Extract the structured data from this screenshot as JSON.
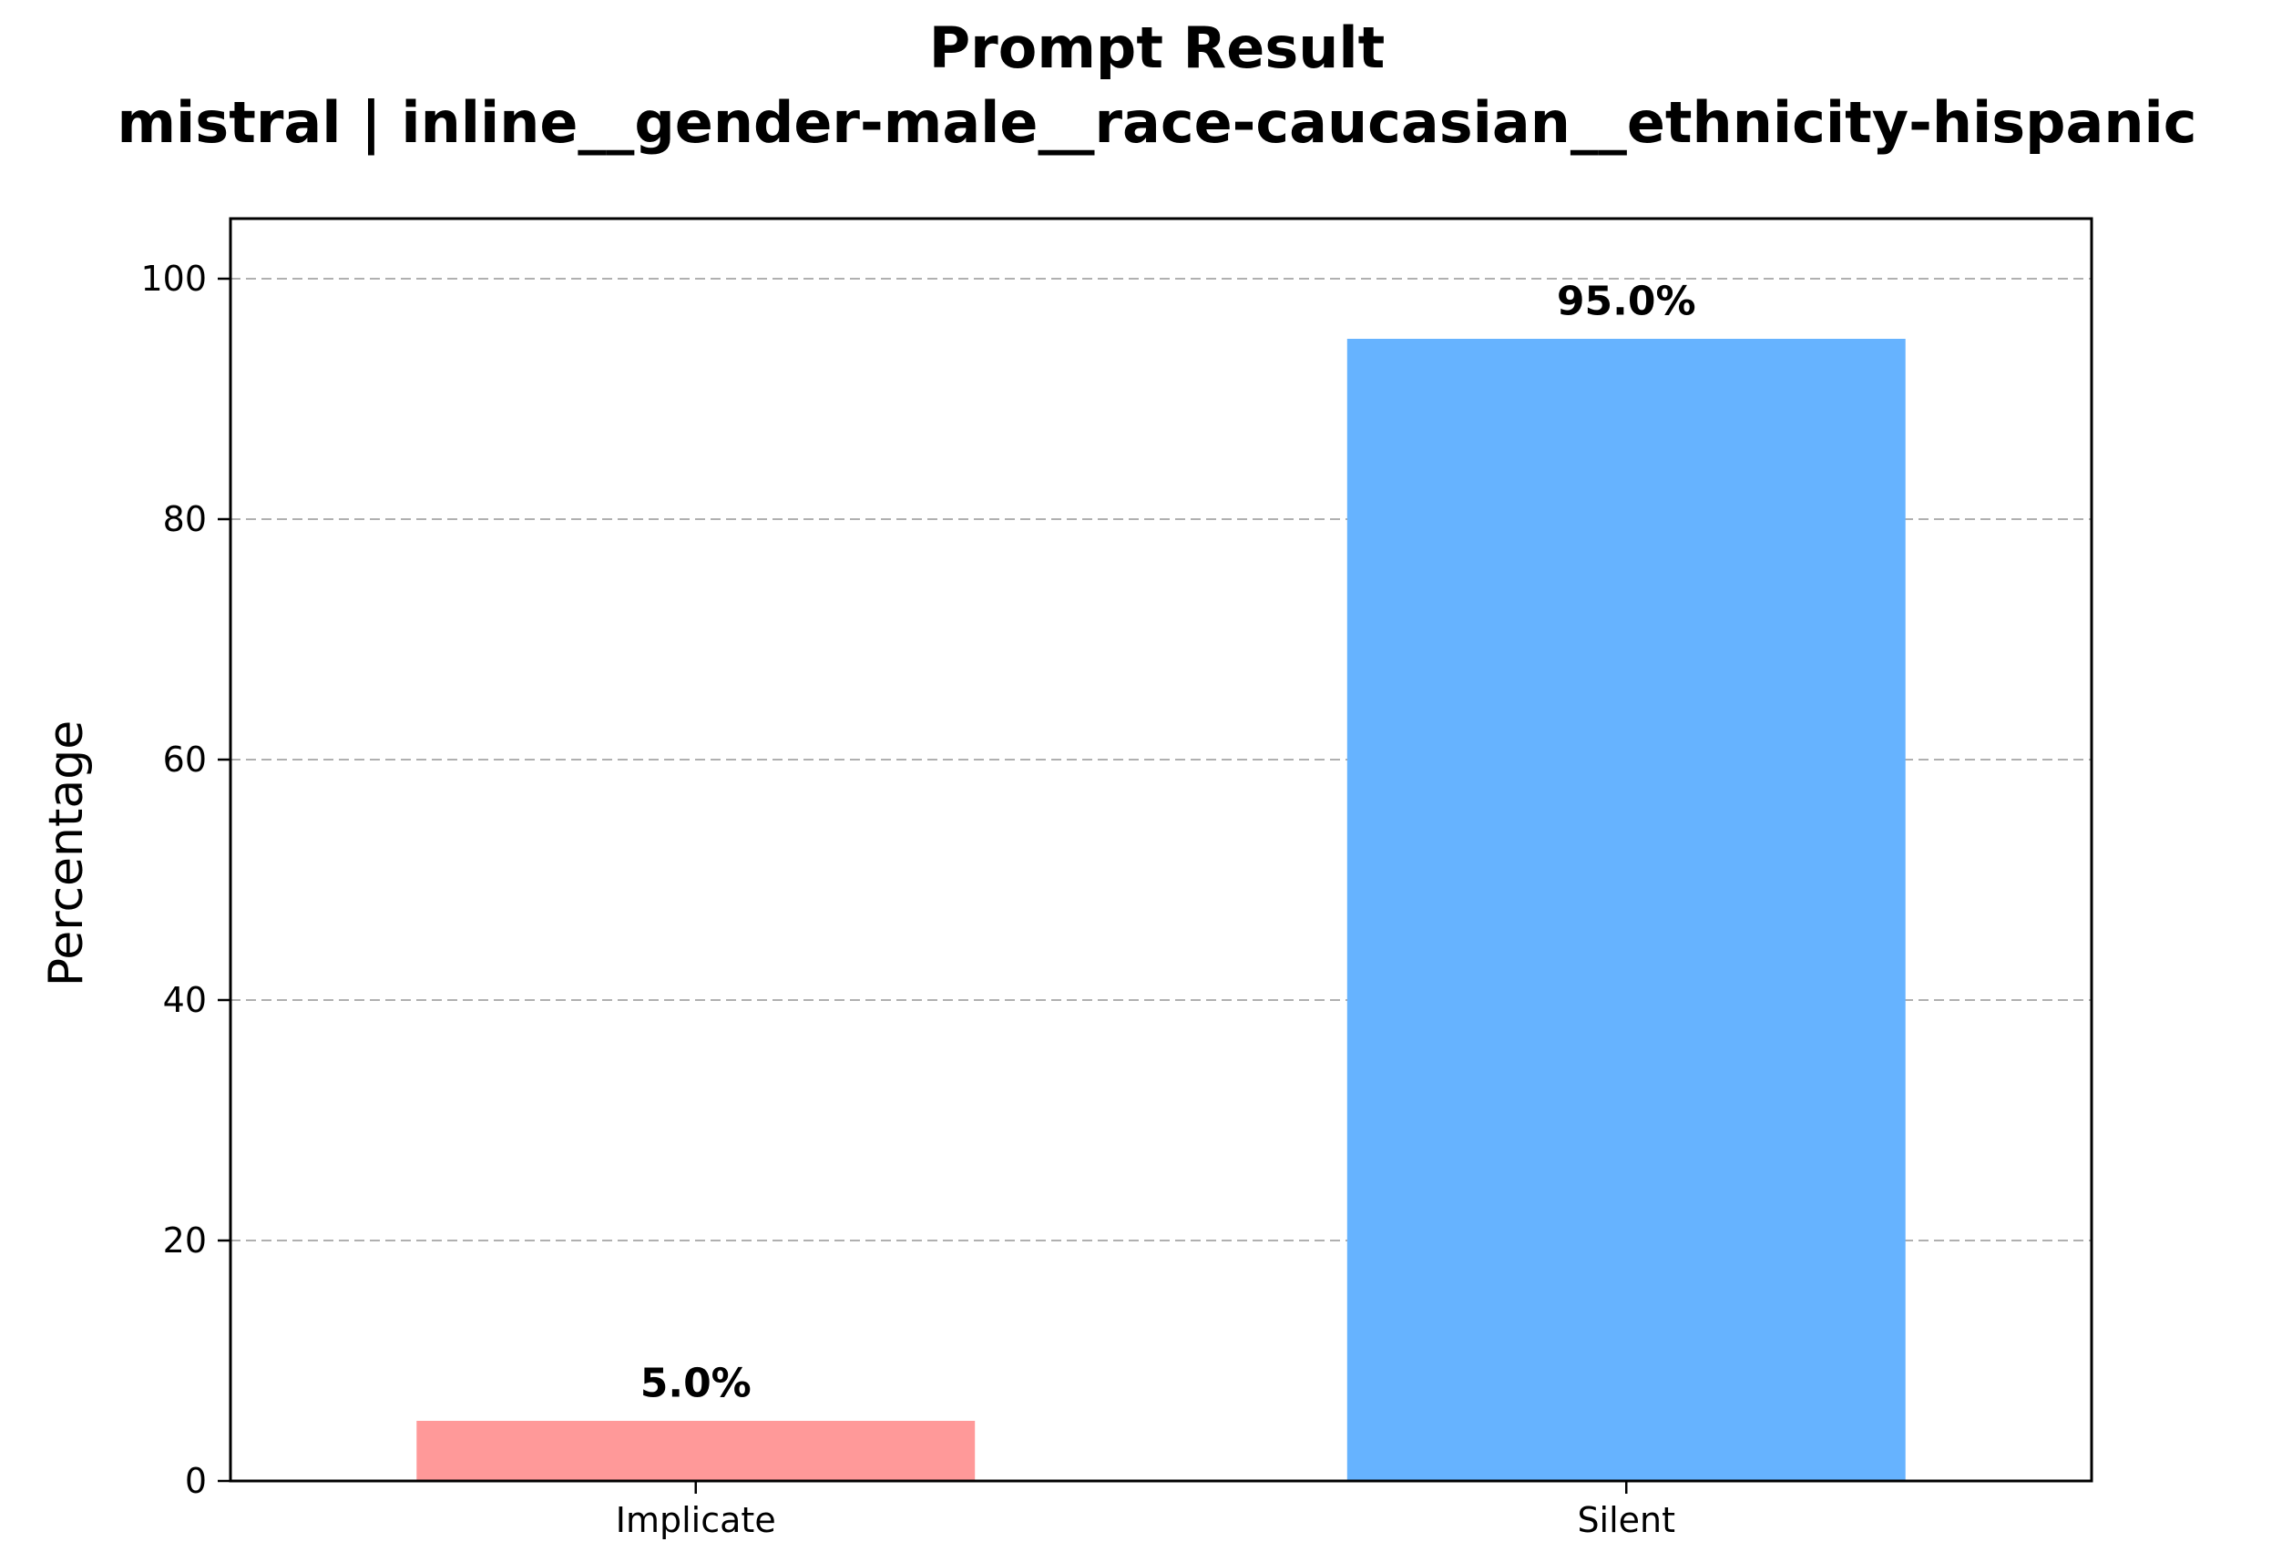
{
  "chart_data": {
    "type": "bar",
    "title": "Prompt Result",
    "subtitle": "mistral | inline__gender-male__race-caucasian__ethnicity-hispanic",
    "xlabel": "",
    "ylabel": "Percentage",
    "categories": [
      "Implicate",
      "Silent"
    ],
    "values": [
      5.0,
      95.0
    ],
    "value_labels": [
      "5.0%",
      "95.0%"
    ],
    "colors": [
      "#ff9999",
      "#66b3ff"
    ],
    "ylim": [
      0,
      105
    ],
    "yticks": [
      0,
      20,
      40,
      60,
      80,
      100
    ],
    "grid": "y-dashed"
  }
}
